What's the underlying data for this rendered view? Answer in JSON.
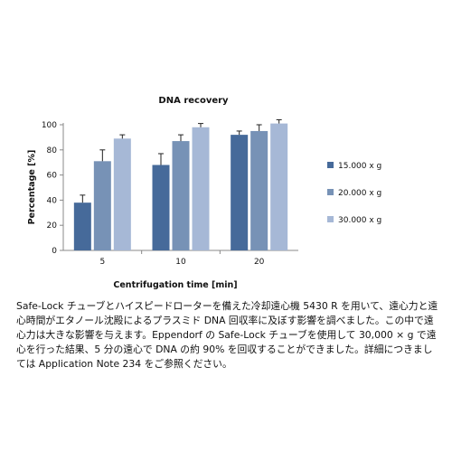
{
  "chart_data": {
    "type": "bar",
    "title": "DNA recovery",
    "xlabel": "Centrifugation time [min]",
    "ylabel": "Percentage [%]",
    "categories": [
      "5",
      "10",
      "20"
    ],
    "ylim": [
      0,
      100
    ],
    "yticks": [
      0,
      20,
      40,
      60,
      80,
      100
    ],
    "grid": false,
    "legend_position": "right",
    "series": [
      {
        "name": "15.000 x g",
        "color": "#466a9a",
        "values": [
          38,
          68,
          92
        ],
        "errors": [
          6,
          9,
          3
        ]
      },
      {
        "name": "20.000 x g",
        "color": "#7792b6",
        "values": [
          71,
          87,
          95
        ],
        "errors": [
          9,
          5,
          5
        ]
      },
      {
        "name": "30.000 x g",
        "color": "#a6b8d6",
        "values": [
          89,
          98,
          101
        ],
        "errors": [
          3,
          3,
          3
        ]
      }
    ]
  },
  "caption": "Safe-Lock チューブとハイスピードローターを備えた冷却遠心機 5430 R を用いて、遠心力と遠心時間がエタノール沈殿によるプラスミド DNA 回収率に及ぼす影響を調べました。この中で遠心力は大きな影響を与えます。Eppendorf の Safe-Lock チューブを使用して 30,000 × g で遠心を行った結果、5 分の遠心で DNA の約 90% を回収することができました。詳細につきましては Application Note 234 をご参照ください。"
}
